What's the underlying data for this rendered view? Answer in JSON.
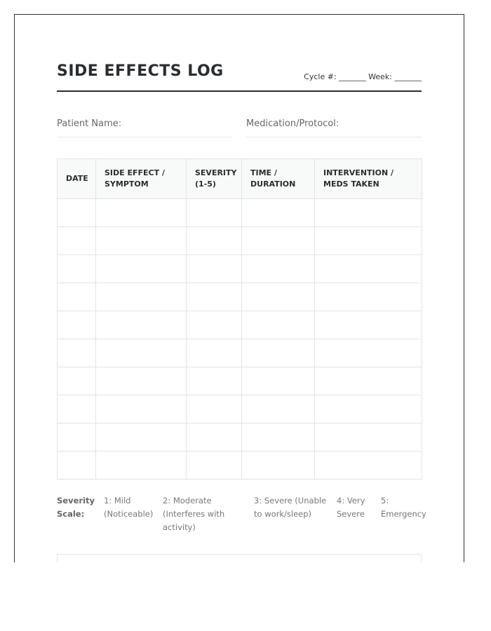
{
  "title": "SIDE EFFECTS LOG",
  "cycle_week": "Cycle #: _______ Week: _______",
  "fields": {
    "patient": "Patient Name:",
    "medication": "Medication/Protocol:"
  },
  "table": {
    "headers": [
      "DATE",
      "SIDE EFFECT / SYMPTOM",
      "SEVERITY (1-5)",
      "TIME / DURATION",
      "INTERVENTION / MEDS TAKEN"
    ],
    "empty_rows": 10
  },
  "severity_scale": {
    "label": "Severity Scale:",
    "levels": [
      "1: Mild (Noticeable)",
      "2: Moderate (Interferes with activity)",
      "3: Severe (Unable to work/sleep)",
      "4: Very Severe",
      "5: Emergency"
    ]
  }
}
